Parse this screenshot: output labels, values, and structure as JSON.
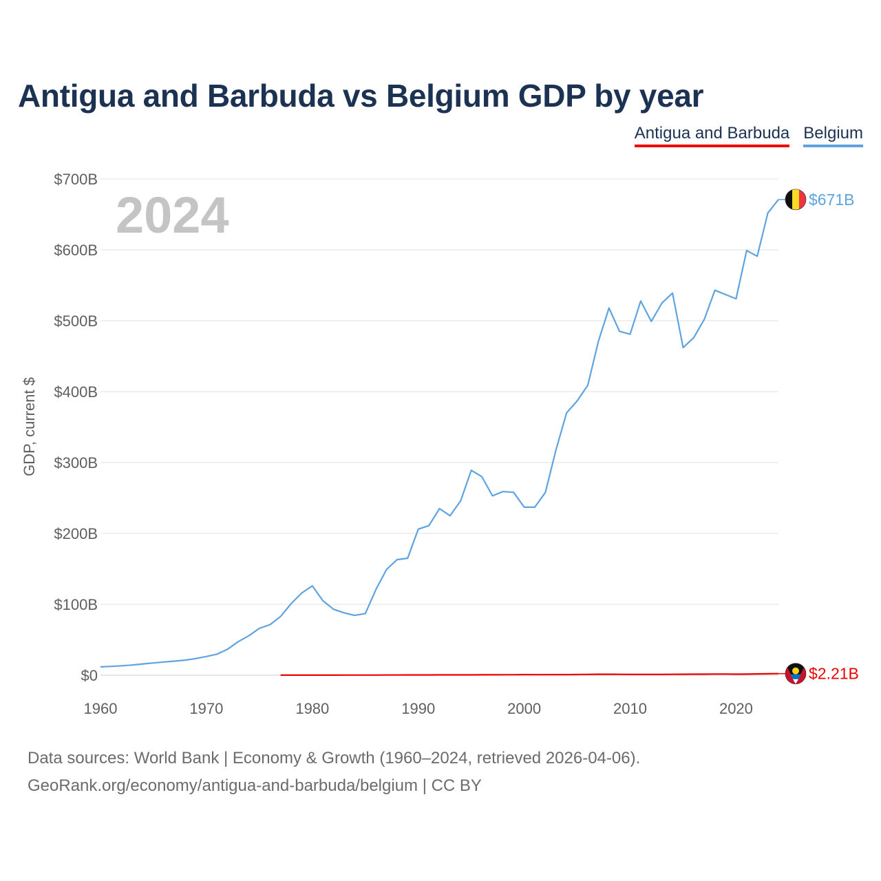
{
  "title": "Antigua and Barbuda vs Belgium GDP by year",
  "legend": [
    {
      "label": "Antigua and Barbuda",
      "color": "#ee0000"
    },
    {
      "label": "Belgium",
      "color": "#5ea3e0"
    }
  ],
  "source": {
    "line1": "Data sources: World Bank | Economy & Growth (1960–2024, retrieved 2026-04-06).",
    "line2": "GeoRank.org/economy/antigua-and-barbuda/belgium | CC BY"
  },
  "chart_data": {
    "type": "line",
    "title": "Antigua and Barbuda vs Belgium GDP by year",
    "ylabel": "GDP, current $",
    "xlabel": "",
    "year_label": "2024",
    "xlim": [
      1960,
      2024
    ],
    "ylim": [
      0,
      700
    ],
    "y_unit": "billions USD",
    "x_ticks": [
      1960,
      1970,
      1980,
      1990,
      2000,
      2010,
      2020
    ],
    "x_tick_labels": [
      "1960",
      "1970",
      "1980",
      "1990",
      "2000",
      "2010",
      "2020"
    ],
    "y_ticks": [
      0,
      100,
      200,
      300,
      400,
      500,
      600,
      700
    ],
    "y_tick_labels": [
      "$0",
      "$100B",
      "$200B",
      "$300B",
      "$400B",
      "$500B",
      "$600B",
      "$700B"
    ],
    "grid": true,
    "series": [
      {
        "name": "Belgium",
        "color": "#5ea3e0",
        "end_label": "$671B",
        "flag": "belgium-flag",
        "x": [
          1960,
          1961,
          1962,
          1963,
          1964,
          1965,
          1966,
          1967,
          1968,
          1969,
          1970,
          1971,
          1972,
          1973,
          1974,
          1975,
          1976,
          1977,
          1978,
          1979,
          1980,
          1981,
          1982,
          1983,
          1984,
          1985,
          1986,
          1987,
          1988,
          1989,
          1990,
          1991,
          1992,
          1993,
          1994,
          1995,
          1996,
          1997,
          1998,
          1999,
          2000,
          2001,
          2002,
          2003,
          2004,
          2005,
          2006,
          2007,
          2008,
          2009,
          2010,
          2011,
          2012,
          2013,
          2014,
          2015,
          2016,
          2017,
          2018,
          2019,
          2020,
          2021,
          2022,
          2023,
          2024
        ],
        "values": [
          11.7,
          12.4,
          13.3,
          14.4,
          15.9,
          17.3,
          18.6,
          19.9,
          21.3,
          23.5,
          26.4,
          29.7,
          36.7,
          47.3,
          55.6,
          66.1,
          71.3,
          82.8,
          101,
          116,
          126,
          105,
          93,
          88,
          84.4,
          87,
          121,
          149,
          163,
          165,
          206,
          211,
          235,
          225,
          246,
          289,
          280,
          253,
          259,
          258,
          237,
          237,
          258,
          318,
          370,
          387,
          409,
          471,
          518,
          485,
          481,
          528,
          499,
          525,
          539,
          462,
          476,
          502,
          543,
          537,
          531,
          599,
          591,
          652,
          671
        ]
      },
      {
        "name": "Antigua and Barbuda",
        "color": "#ee0000",
        "end_label": "$2.21B",
        "flag": "antigua-and-barbuda-flag",
        "x": [
          1977,
          1978,
          1979,
          1980,
          1981,
          1982,
          1983,
          1984,
          1985,
          1986,
          1987,
          1988,
          1989,
          1990,
          1991,
          1992,
          1993,
          1994,
          1995,
          1996,
          1997,
          1998,
          1999,
          2000,
          2001,
          2002,
          2003,
          2004,
          2005,
          2006,
          2007,
          2008,
          2009,
          2010,
          2011,
          2012,
          2013,
          2014,
          2015,
          2016,
          2017,
          2018,
          2019,
          2020,
          2021,
          2022,
          2023,
          2024
        ],
        "values": [
          0.08,
          0.09,
          0.1,
          0.12,
          0.13,
          0.14,
          0.15,
          0.17,
          0.19,
          0.22,
          0.25,
          0.3,
          0.34,
          0.4,
          0.42,
          0.44,
          0.47,
          0.51,
          0.5,
          0.55,
          0.6,
          0.64,
          0.68,
          0.83,
          0.8,
          0.81,
          0.85,
          0.92,
          1.0,
          1.15,
          1.32,
          1.37,
          1.22,
          1.15,
          1.14,
          1.21,
          1.18,
          1.25,
          1.34,
          1.44,
          1.47,
          1.61,
          1.69,
          1.41,
          1.56,
          1.87,
          2.0,
          2.21
        ]
      }
    ]
  }
}
